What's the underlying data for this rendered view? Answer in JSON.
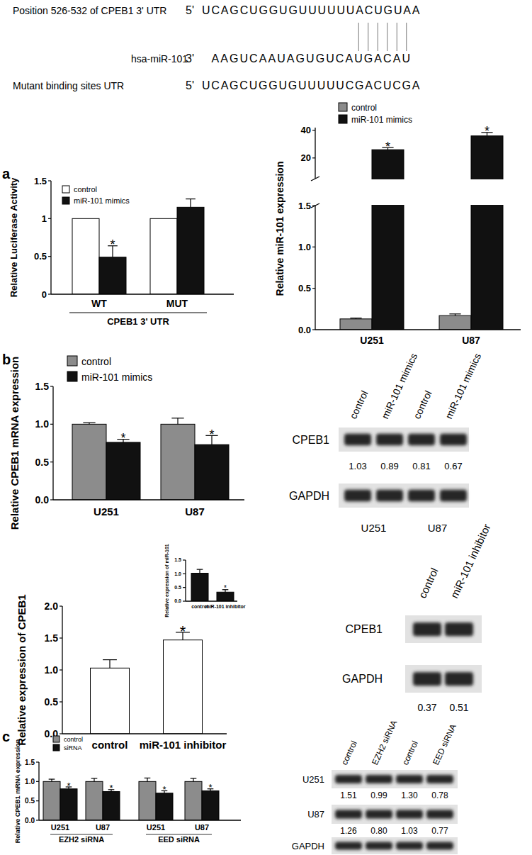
{
  "panel_labels": [
    "a",
    "b",
    "c"
  ],
  "alignment": {
    "utr": {
      "label": "Position 526-532 of CPEB1 3' UTR",
      "end": "5'",
      "sequence": "UCAGCUGGUGUUUUUUACUGUAA"
    },
    "mirna": {
      "label": "hsa-miR-101",
      "end": "3'",
      "sequence": "AAGUCAAUAGUGUCAUGACAU"
    },
    "mutant": {
      "label": "Mutant binding sites UTR",
      "end": "5'",
      "sequence": "UCAGCUGGUGUUUUUCGACUCGA"
    }
  },
  "chart_data": [
    {
      "type": "bar",
      "y_label": "Relative Luciferase Activity",
      "x_label": "CPEB1 3' UTR",
      "categories": [
        "WT",
        "MUT"
      ],
      "series": [
        {
          "name": "control",
          "color": "#ffffff",
          "values": [
            1,
            1
          ]
        },
        {
          "name": "miR-101 mimics",
          "color": "#111111",
          "values": [
            0.49,
            1.15
          ],
          "errors": [
            0.15,
            0.11
          ],
          "annotations": [
            "*",
            null
          ]
        }
      ],
      "ylim": [
        0,
        1.5
      ],
      "yticks": [
        0,
        0.5,
        1,
        1.5
      ],
      "legend": "top-left"
    },
    {
      "type": "bar",
      "y_label": "Relative miR-101 expression",
      "categories": [
        "U251",
        "U87"
      ],
      "series": [
        {
          "name": "control",
          "color": "#8c8c8c",
          "values": [
            0.13,
            0.17
          ],
          "errors": [
            0.01,
            0.02
          ]
        },
        {
          "name": "miR-101 mimics",
          "color": "#111111",
          "values": [
            26,
            36
          ],
          "errors": [
            1.5,
            2.5
          ],
          "annotations": [
            "*",
            "*"
          ]
        }
      ],
      "ylim": [
        0,
        42
      ],
      "y_break": [
        1.5,
        5
      ],
      "yticks": [
        {
          "value": 0,
          "label": "0.0"
        },
        {
          "value": 0.5,
          "label": "0.5"
        },
        {
          "value": 1,
          "label": "1.0"
        },
        {
          "value": 1.5,
          "label": "1.5"
        },
        20,
        40
      ],
      "legend": "top"
    },
    {
      "type": "bar",
      "y_label": "Relative CPEB1 mRNA expression",
      "categories": [
        "U251",
        "U87"
      ],
      "series": [
        {
          "name": "control",
          "color": "#8c8c8c",
          "values": [
            1.0,
            1.0
          ],
          "errors": [
            0.02,
            0.08
          ]
        },
        {
          "name": "miR-101 mimics",
          "color": "#111111",
          "values": [
            0.76,
            0.73
          ],
          "errors": [
            0.04,
            0.12
          ],
          "annotations": [
            "*",
            "*"
          ]
        }
      ],
      "ylim": [
        0,
        1.5
      ],
      "yticks": [
        {
          "value": 0,
          "label": "0.0"
        },
        {
          "value": 0.5,
          "label": "0.5"
        },
        {
          "value": 1,
          "label": "1.0"
        },
        {
          "value": 1.5,
          "label": "1.5"
        }
      ],
      "legend": "top"
    },
    {
      "type": "bar",
      "y_label": "Relative expression of CPEB1",
      "categories": [
        "control",
        "miR-101 inhibitor"
      ],
      "values": [
        1.03,
        1.47
      ],
      "errors": [
        0.13,
        0.12
      ],
      "colors": [
        "#ffffff",
        "#ffffff"
      ],
      "annotations": [
        null,
        "*"
      ],
      "ylim": [
        0,
        2
      ],
      "yticks": [
        {
          "value": 0,
          "label": "0.0"
        },
        {
          "value": 0.5,
          "label": "0.5"
        },
        {
          "value": 1,
          "label": "1.0"
        },
        {
          "value": 1.5,
          "label": "1.5"
        },
        {
          "value": 2,
          "label": "2.0"
        }
      ]
    },
    {
      "type": "bar",
      "y_label": "Relative expression of miR-101",
      "categories": [
        "control",
        "miR-101 inhibitor"
      ],
      "values": [
        1.02,
        0.33
      ],
      "errors": [
        0.14,
        0.09
      ],
      "colors": [
        "#111111",
        "#111111"
      ],
      "annotations": [
        null,
        "*"
      ],
      "ylim": [
        0,
        1.5
      ],
      "yticks": [
        {
          "value": 0,
          "label": "0.0"
        },
        {
          "value": 0.5,
          "label": "0.5"
        },
        {
          "value": 1,
          "label": "1.0"
        },
        {
          "value": 1.5,
          "label": "1.5"
        }
      ]
    },
    {
      "type": "bar",
      "y_label": "Relative CPEB1 mRNA expression",
      "categories": [
        "U251",
        "U87",
        "U251",
        "U87"
      ],
      "group_labels": [
        "EZH2 siRNA",
        "EED siRNA"
      ],
      "series": [
        {
          "name": "control",
          "color": "#8c8c8c",
          "values": [
            1.0,
            1.0,
            1.0,
            1.0
          ],
          "errors": [
            0.06,
            0.08,
            0.09,
            0.08
          ]
        },
        {
          "name": "siRNA",
          "color": "#111111",
          "values": [
            0.81,
            0.74,
            0.7,
            0.76
          ],
          "errors": [
            0.05,
            0.05,
            0.06,
            0.05
          ],
          "annotations": [
            "*",
            "*",
            "*",
            "*"
          ]
        }
      ],
      "ylim": [
        0,
        1.5
      ],
      "yticks": [
        {
          "value": 0,
          "label": "0.0"
        },
        {
          "value": 0.5,
          "label": "0.5"
        },
        {
          "value": 1,
          "label": "1.0"
        },
        {
          "value": 1.5,
          "label": "1.5"
        }
      ],
      "legend": "top"
    }
  ],
  "blots": [
    {
      "columns": [
        "control",
        "miR-101 mimics",
        "control",
        "miR-101 mimics"
      ],
      "rows": [
        {
          "label": "CPEB1",
          "densities": [
            "1.03",
            "0.89",
            "0.81",
            "0.67"
          ]
        },
        {
          "label": "GAPDH"
        }
      ],
      "cell_lines": [
        "U251",
        "U87"
      ]
    },
    {
      "columns": [
        "control",
        "miR-101 inhibitor"
      ],
      "rows": [
        {
          "label": "CPEB1"
        },
        {
          "label": "GAPDH",
          "densities": [
            "0.37",
            "0.51"
          ]
        }
      ]
    },
    {
      "columns": [
        "control",
        "EZH2 siRNA",
        "control",
        "EED siRNA"
      ],
      "rows": [
        {
          "label": "U251",
          "densities": [
            "1.51",
            "0.99",
            "1.30",
            "0.78"
          ]
        },
        {
          "label": "U87",
          "densities": [
            "1.26",
            "0.80",
            "1.03",
            "0.77"
          ]
        },
        {
          "label": "GAPDH"
        }
      ]
    }
  ]
}
